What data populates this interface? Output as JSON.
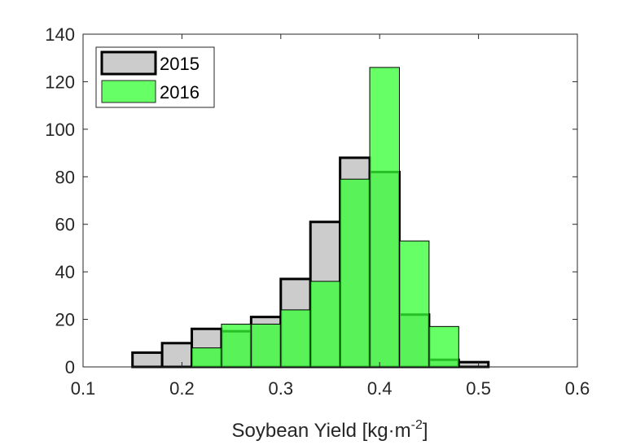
{
  "chart_data": {
    "type": "bar",
    "subtype": "overlaid histogram",
    "xlabel": "Soybean Yield  [kg·m",
    "xlabel_superscript": "-2",
    "xlabel_suffix": "]",
    "ylabel": "",
    "xlim": [
      0.1,
      0.6
    ],
    "ylim": [
      0,
      140
    ],
    "xticks": [
      0.1,
      0.2,
      0.3,
      0.4,
      0.5,
      0.6
    ],
    "xtick_labels": [
      "0.1",
      "0.2",
      "0.3",
      "0.4",
      "0.5",
      "0.6"
    ],
    "yticks": [
      0,
      20,
      40,
      60,
      80,
      100,
      120,
      140
    ],
    "ytick_labels": [
      "0",
      "20",
      "40",
      "60",
      "80",
      "100",
      "120",
      "140"
    ],
    "grid": false,
    "legend_position": "top-left",
    "series": [
      {
        "name": "2015",
        "color": "#cccccc",
        "edge_color": "#000000",
        "bin_edges": [
          0.15,
          0.18,
          0.21,
          0.24,
          0.27,
          0.3,
          0.33,
          0.36,
          0.39,
          0.42,
          0.45,
          0.48,
          0.51
        ],
        "values": [
          6,
          10,
          16,
          15,
          21,
          37,
          61,
          88,
          82,
          22,
          3,
          2
        ]
      },
      {
        "name": "2016",
        "color": "#33ff33",
        "edge_color": "#000000",
        "bin_edges": [
          0.21,
          0.24,
          0.27,
          0.3,
          0.33,
          0.36,
          0.39,
          0.42,
          0.45,
          0.48
        ],
        "values": [
          8,
          18,
          18,
          24,
          36,
          79,
          126,
          53,
          17
        ]
      }
    ]
  }
}
